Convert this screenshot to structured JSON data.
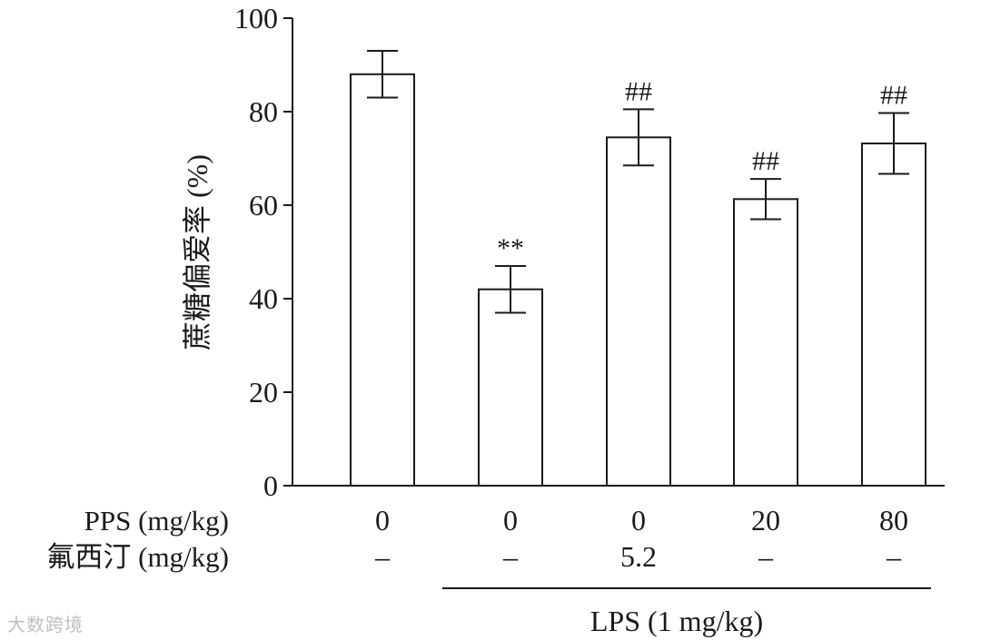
{
  "chart_data": {
    "type": "bar",
    "ylabel": "蔗糖偏爱率 (%)",
    "ylim": [
      0,
      100
    ],
    "yticks": [
      "0",
      "20",
      "40",
      "60",
      "80",
      "100"
    ],
    "values": [
      88,
      42,
      74.5,
      61.3,
      73.2
    ],
    "errors": [
      5,
      5,
      6,
      4.3,
      6.5
    ],
    "annotations": [
      "",
      "**",
      "##",
      "##",
      "##"
    ],
    "rows": [
      {
        "label": "PPS (mg/kg)",
        "values": [
          "0",
          "0",
          "0",
          "20",
          "80"
        ]
      },
      {
        "label": "氟西汀 (mg/kg)",
        "values": [
          "–",
          "–",
          "5.2",
          "–",
          "–"
        ]
      }
    ],
    "group_label": "LPS (1 mg/kg)"
  },
  "watermark": "大数跨境"
}
